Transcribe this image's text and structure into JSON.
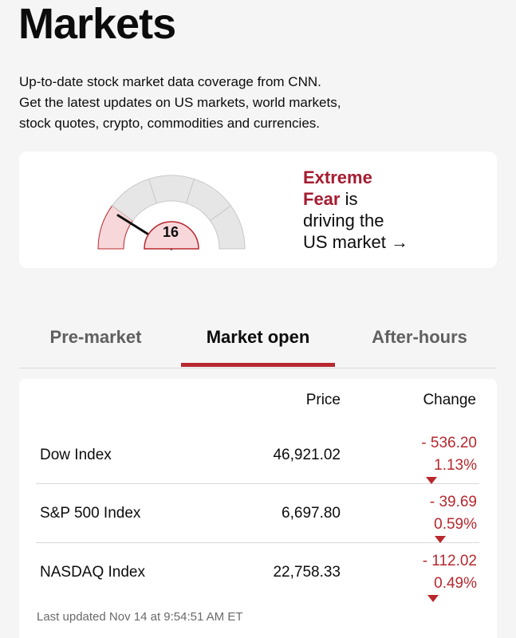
{
  "page": {
    "title": "Markets",
    "intro_lines": [
      "Up-to-date stock market data coverage from CNN.",
      "Get the latest updates on US markets, world markets,",
      "stock quotes, crypto, commodities and currencies."
    ]
  },
  "fear_greed": {
    "value": "16",
    "label_accent_1": "Extreme",
    "label_accent_2": "Fear",
    "label_rest_2": " is",
    "label_line_3": "driving the",
    "label_line_4": "US market",
    "arrow": "→",
    "colors": {
      "active_segment": "#f8d7da",
      "active_border": "#b7282e",
      "inactive_segment": "#e6e6e6",
      "accent_text": "#a51c30"
    }
  },
  "tabs": [
    {
      "label": "Pre-market",
      "active": false
    },
    {
      "label": "Market open",
      "active": true
    },
    {
      "label": "After-hours",
      "active": false
    }
  ],
  "table": {
    "headers": {
      "price": "Price",
      "change": "Change"
    },
    "rows": [
      {
        "name": "Dow Index",
        "price": "46,921.02",
        "change": "- 536.20",
        "pct": "1.13%"
      },
      {
        "name": "S&P 500 Index",
        "price": "6,697.80",
        "change": "- 39.69",
        "pct": "0.59%"
      },
      {
        "name": "NASDAQ Index",
        "price": "22,758.33",
        "change": "- 112.02",
        "pct": "0.49%"
      }
    ],
    "last_updated": "Last updated Nov 14 at 9:54:51 AM ET",
    "down_color": "#b7282e"
  }
}
